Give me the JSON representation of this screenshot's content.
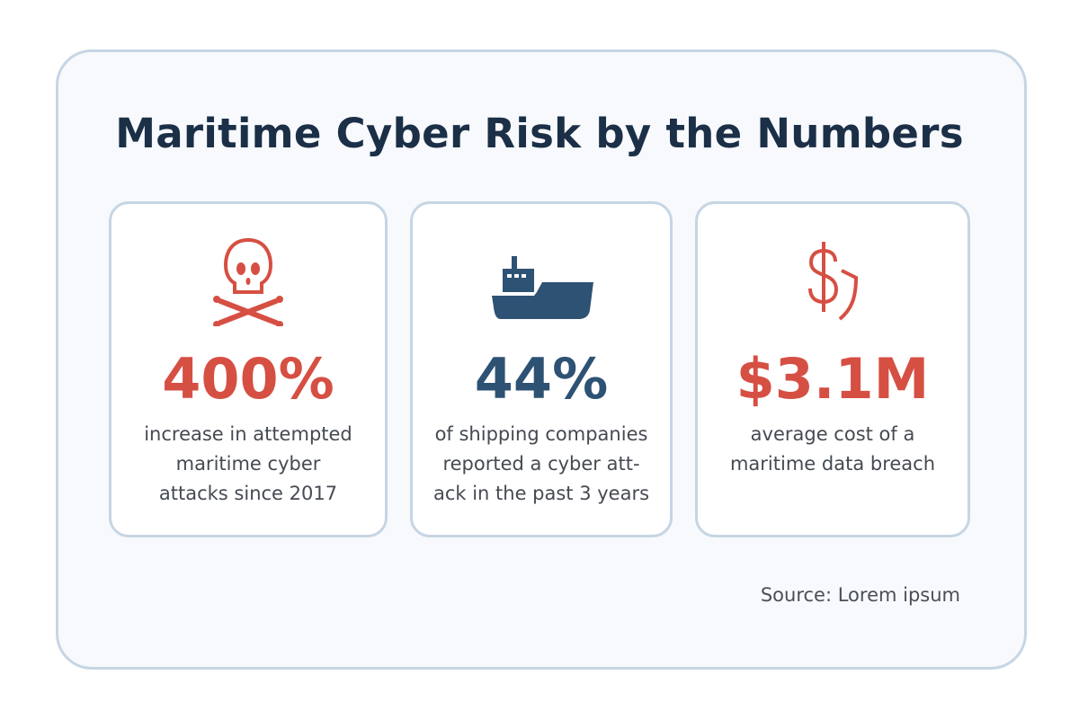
{
  "title": "Maritime Cyber Risk by the Numbers",
  "colors": {
    "red": "#d64f43",
    "navy": "#2e5274",
    "title": "#1b2f47",
    "border": "#c6d5e4"
  },
  "cards": [
    {
      "icon": "skull-crossbones-icon",
      "value": "400%",
      "lines": [
        "increase in attempted",
        "maritime cyber",
        "attacks since 2017"
      ]
    },
    {
      "icon": "ship-icon",
      "value": "44%",
      "lines": [
        "of shipping companies",
        "reported a cyber att-",
        "ack in the past 3 years"
      ]
    },
    {
      "icon": "dollar-shield-icon",
      "value": "$3.1M",
      "lines": [
        "average cost of a",
        "maritime data breach"
      ]
    }
  ],
  "source": "Source: Lorem ipsum"
}
